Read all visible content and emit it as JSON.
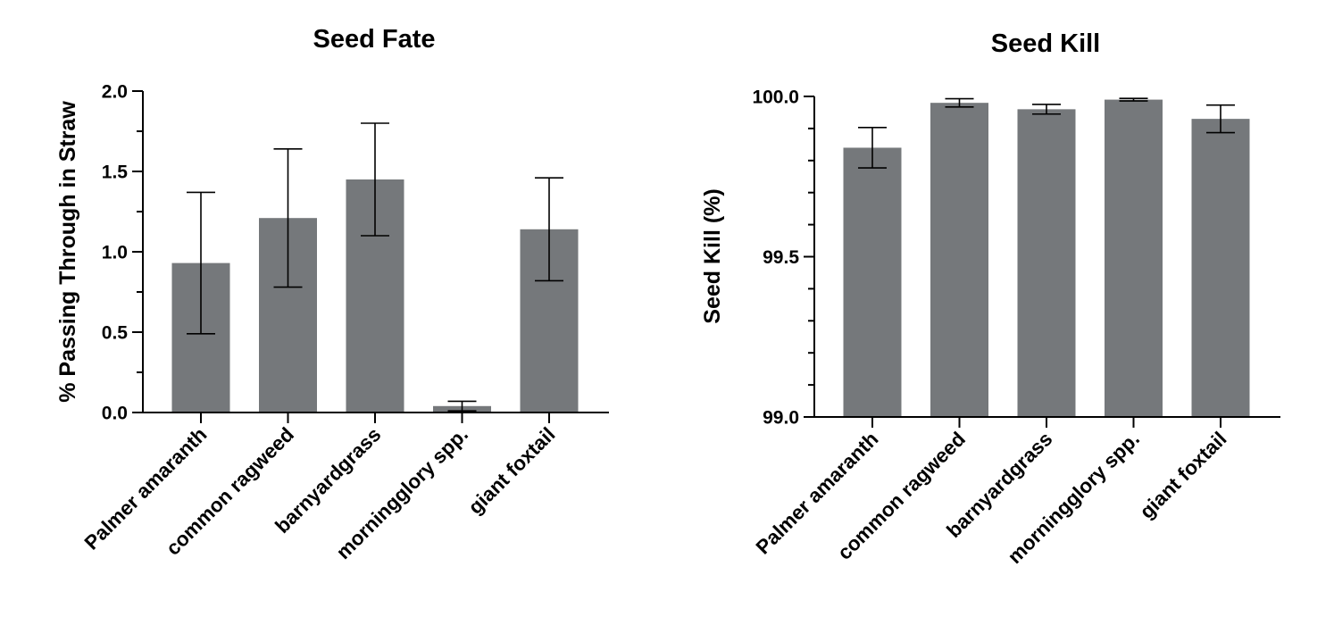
{
  "chart_data": [
    {
      "type": "bar",
      "title": "Seed Fate",
      "xlabel": "",
      "ylabel": "% Passing Through in Straw",
      "categories": [
        "Palmer amaranth",
        "common ragweed",
        "barnyardgrass",
        "morningglory spp.",
        "giant foxtail"
      ],
      "values": [
        0.93,
        1.21,
        1.45,
        0.04,
        1.14
      ],
      "error": [
        0.44,
        0.43,
        0.35,
        0.03,
        0.32
      ],
      "ylim": [
        0,
        2.0
      ],
      "yticks": [
        0.0,
        0.5,
        1.0,
        1.5,
        2.0
      ],
      "ytick_labels": [
        "0.0",
        "0.5",
        "1.0",
        "1.5",
        "2.0"
      ],
      "minor_ticks": 1,
      "bar_color": "#75787b",
      "grid": false
    },
    {
      "type": "bar",
      "title": "Seed Kill",
      "xlabel": "",
      "ylabel": "Seed Kill (%)",
      "categories": [
        "Palmer amaranth",
        "common ragweed",
        "barnyardgrass",
        "morningglory spp.",
        "giant foxtail"
      ],
      "values": [
        99.84,
        99.98,
        99.96,
        99.99,
        99.93
      ],
      "error": [
        0.063,
        0.013,
        0.015,
        0.004,
        0.043
      ],
      "ylim": [
        99.0,
        100.0
      ],
      "yticks": [
        99.0,
        99.5,
        100.0
      ],
      "ytick_labels": [
        "99.0",
        "99.5",
        "100.0"
      ],
      "minor_ticks": 4,
      "bar_color": "#75787b",
      "grid": false
    }
  ]
}
